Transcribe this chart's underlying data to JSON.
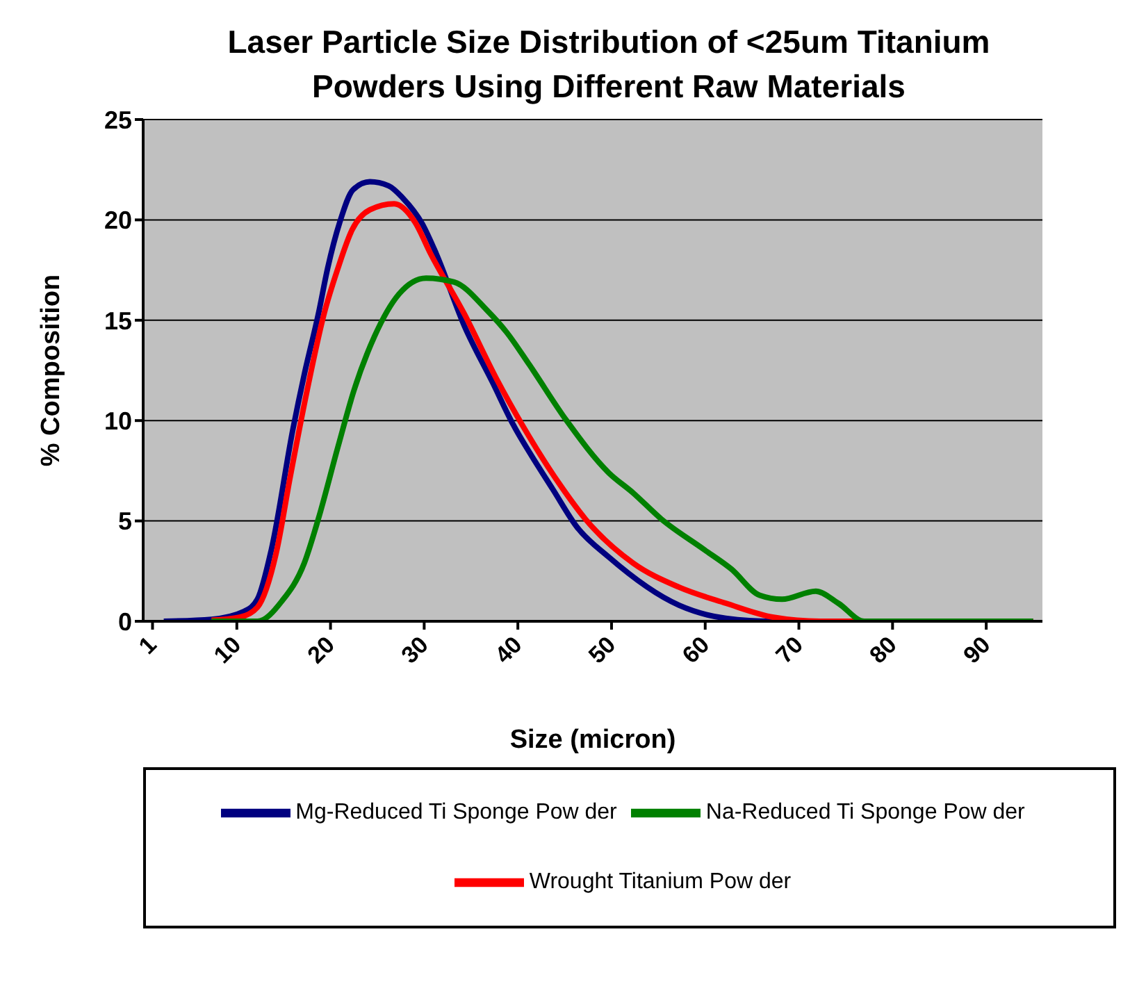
{
  "chart_data": {
    "type": "line",
    "title": "Laser Particle Size Distribution of <25um Titanium Powders Using Different Raw Materials",
    "xlabel": "Size (micron)",
    "ylabel": "% Composition",
    "xlim": [
      0,
      96
    ],
    "xticks": [
      1,
      10,
      20,
      30,
      40,
      50,
      60,
      70,
      80,
      90
    ],
    "ylim": [
      0,
      25
    ],
    "yticks": [
      0,
      5,
      10,
      15,
      20,
      25
    ],
    "grid": "y",
    "legend": "bottom",
    "marker": "none",
    "line_style": "solid",
    "series": [
      {
        "name": "Mg-Reduced Ti Sponge Pow der",
        "color": "#000080",
        "x": [
          2.2,
          7.3,
          10.8,
          12.2,
          13.7,
          16,
          17.2,
          18.7,
          19.7,
          21,
          22.4,
          24.2,
          26.2,
          27.7,
          29.8,
          31.3,
          34.3,
          37.3,
          39.5,
          42.2,
          43.7,
          46.3,
          49.7,
          57.2,
          62.2,
          67.2,
          80,
          95
        ],
        "values": [
          0,
          0.1,
          0.5,
          1.1,
          3.6,
          9.6,
          12.3,
          15.3,
          17.6,
          19.9,
          21.5,
          21.9,
          21.7,
          21.1,
          19.8,
          18.3,
          14.7,
          11.9,
          9.8,
          7.7,
          6.6,
          4.7,
          3.2,
          0.8,
          0.15,
          0,
          0,
          0
        ]
      },
      {
        "name": "Wrought Titanium Pow der",
        "color": "#ff0000",
        "x": [
          7.3,
          10.3,
          12.2,
          14.2,
          15.7,
          17.5,
          19.3,
          20.8,
          22.3,
          24.2,
          26.8,
          29,
          30.7,
          34.3,
          37.7,
          40.7,
          44.8,
          47.2,
          52.3,
          57.2,
          62.2,
          67.3,
          72.3,
          80,
          95
        ],
        "values": [
          0.05,
          0.2,
          0.7,
          3.4,
          7.2,
          11.5,
          15.3,
          17.6,
          19.5,
          20.5,
          20.8,
          19.9,
          18.3,
          15.3,
          12.1,
          9.6,
          6.6,
          5.1,
          2.9,
          1.7,
          0.9,
          0.2,
          0,
          0,
          0
        ]
      },
      {
        "name": "Na-Reduced Ti Sponge Pow der",
        "color": "#008000",
        "x": [
          7.3,
          12.2,
          14.8,
          17.2,
          18.7,
          20.8,
          22.5,
          24.7,
          27.3,
          30.2,
          33.2,
          36.7,
          38.8,
          41.2,
          45.2,
          49.7,
          52.3,
          55.3,
          59.8,
          62.8,
          65.8,
          68.2,
          71.8,
          74.2,
          77,
          80,
          95
        ],
        "values": [
          0,
          0,
          1,
          2.9,
          5.1,
          8.7,
          11.5,
          14.2,
          16.3,
          17.1,
          16.9,
          15.5,
          14.4,
          12.8,
          10,
          7.4,
          6.4,
          5.1,
          3.6,
          2.6,
          1.3,
          1.1,
          1.5,
          0.9,
          0,
          0,
          0
        ]
      }
    ]
  }
}
